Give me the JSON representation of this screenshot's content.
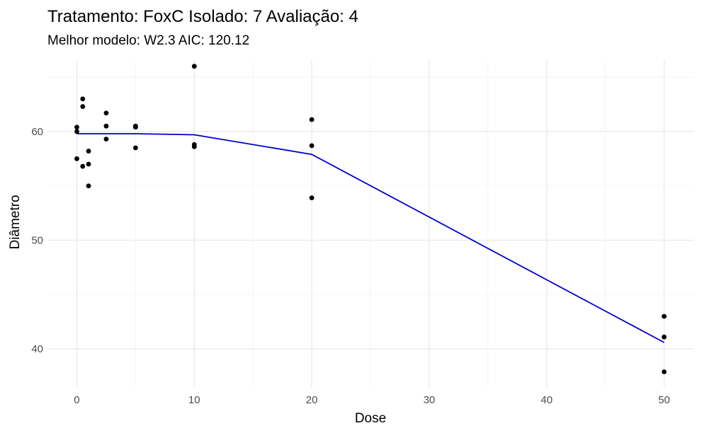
{
  "chart_data": {
    "type": "scatter",
    "title": "Tratamento: FoxC Isolado: 7 Avaliação: 4",
    "subtitle": "Melhor modelo: W2.3 AIC: 120.12",
    "xlabel": "Dose",
    "ylabel": "Diâmetro",
    "xlim": [
      -2.5,
      52.5
    ],
    "ylim": [
      36.5,
      66.5
    ],
    "x_ticks": [
      0,
      10,
      20,
      30,
      40,
      50
    ],
    "x_tick_labels": [
      "0",
      "10",
      "20",
      "30",
      "40",
      "50"
    ],
    "x_minor_ticks": [
      5,
      15,
      25,
      35,
      45
    ],
    "y_ticks": [
      40,
      50,
      60
    ],
    "y_tick_labels": [
      "40",
      "50",
      "60"
    ],
    "y_minor_ticks": [
      45,
      55,
      65
    ],
    "grid": true,
    "point_color": "#000000",
    "line_color": "#0000cd",
    "series": [
      {
        "type": "scatter",
        "points": [
          {
            "x": 0,
            "y": 60.4
          },
          {
            "x": 0,
            "y": 60.0
          },
          {
            "x": 0,
            "y": 57.5
          },
          {
            "x": 0.5,
            "y": 63.0
          },
          {
            "x": 0.5,
            "y": 62.3
          },
          {
            "x": 0.5,
            "y": 56.8
          },
          {
            "x": 1,
            "y": 58.2
          },
          {
            "x": 1,
            "y": 57.0
          },
          {
            "x": 1,
            "y": 55.0
          },
          {
            "x": 2.5,
            "y": 61.7
          },
          {
            "x": 2.5,
            "y": 60.5
          },
          {
            "x": 2.5,
            "y": 59.3
          },
          {
            "x": 5,
            "y": 60.5
          },
          {
            "x": 5,
            "y": 60.4
          },
          {
            "x": 5,
            "y": 58.5
          },
          {
            "x": 10,
            "y": 66.0
          },
          {
            "x": 10,
            "y": 58.8
          },
          {
            "x": 10,
            "y": 58.6
          },
          {
            "x": 20,
            "y": 61.1
          },
          {
            "x": 20,
            "y": 58.7
          },
          {
            "x": 20,
            "y": 53.9
          },
          {
            "x": 50,
            "y": 43.0
          },
          {
            "x": 50,
            "y": 41.1
          },
          {
            "x": 50,
            "y": 37.9
          }
        ]
      },
      {
        "type": "line",
        "points": [
          {
            "x": 0,
            "y": 59.8
          },
          {
            "x": 1,
            "y": 59.8
          },
          {
            "x": 2.5,
            "y": 59.8
          },
          {
            "x": 5,
            "y": 59.8
          },
          {
            "x": 10,
            "y": 59.7
          },
          {
            "x": 20,
            "y": 57.9
          },
          {
            "x": 50,
            "y": 40.6
          }
        ]
      }
    ]
  }
}
